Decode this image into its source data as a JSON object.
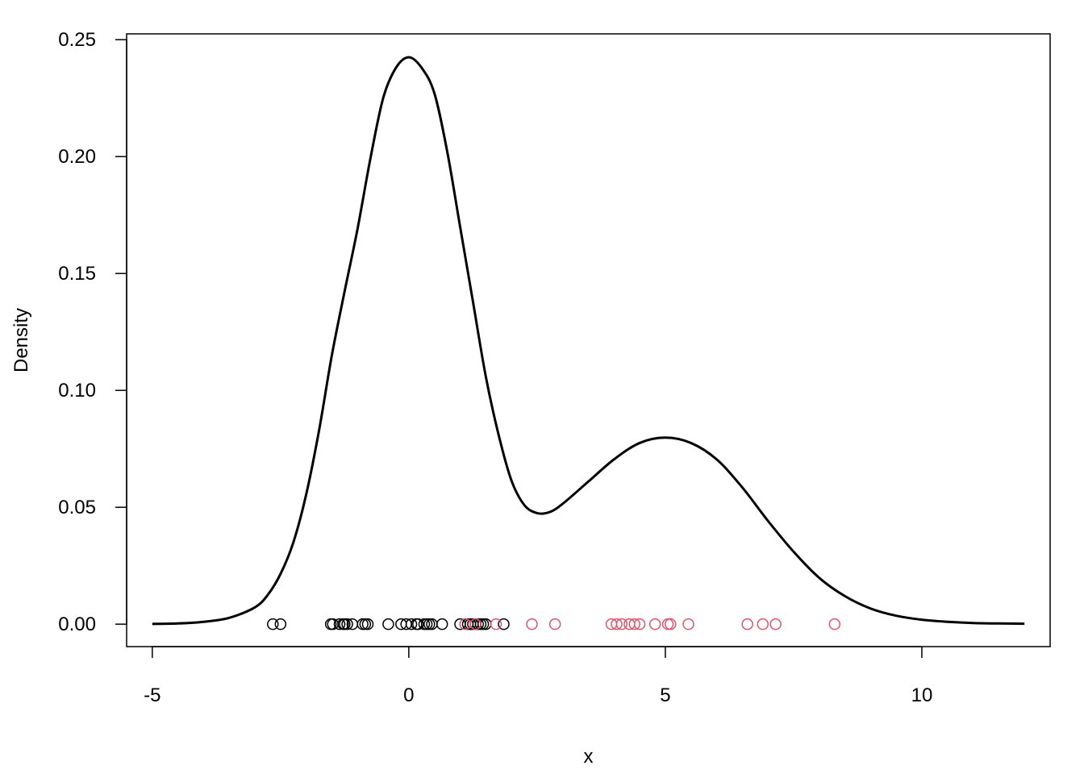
{
  "chart_data": {
    "type": "line",
    "title": "",
    "xlabel": "x",
    "ylabel": "Density",
    "xlim": [
      -5.5,
      12.5
    ],
    "ylim": [
      -0.0096,
      0.2525
    ],
    "grid": false,
    "legend": "none",
    "x_ticks": [
      -5,
      0,
      5,
      10
    ],
    "x_tick_labels": [
      "-5",
      "0",
      "5",
      "10"
    ],
    "y_ticks": [
      0,
      0.05,
      0.1,
      0.15,
      0.2,
      0.25
    ],
    "y_tick_labels": [
      "0.00",
      "0.05",
      "0.10",
      "0.15",
      "0.20",
      "0.25"
    ],
    "colors": {
      "curve": "#000000",
      "group1": "#000000",
      "group2": "#DF536B"
    },
    "density_curve": {
      "x": [
        -5,
        -4.5,
        -4,
        -3.5,
        -3,
        -2.75,
        -2.5,
        -2.25,
        -2,
        -1.75,
        -1.5,
        -1.25,
        -1,
        -0.75,
        -0.5,
        -0.25,
        0,
        0.25,
        0.5,
        0.75,
        1,
        1.25,
        1.5,
        1.75,
        2,
        2.25,
        2.5,
        2.75,
        3,
        3.5,
        4,
        4.5,
        5,
        5.5,
        6,
        6.5,
        7,
        7.5,
        8,
        8.5,
        9,
        9.5,
        10,
        10.5,
        11,
        11.5,
        12
      ],
      "y": [
        0.0001,
        0.0003,
        0.001,
        0.0027,
        0.0072,
        0.0125,
        0.0215,
        0.035,
        0.0555,
        0.0828,
        0.115,
        0.1425,
        0.169,
        0.199,
        0.225,
        0.238,
        0.2425,
        0.238,
        0.227,
        0.202,
        0.17,
        0.138,
        0.106,
        0.081,
        0.0615,
        0.051,
        0.0475,
        0.048,
        0.0515,
        0.061,
        0.0705,
        0.0775,
        0.0798,
        0.0775,
        0.0705,
        0.0585,
        0.0442,
        0.031,
        0.0198,
        0.012,
        0.0067,
        0.0036,
        0.0019,
        0.001,
        0.0005,
        0.0003,
        0.0002
      ]
    },
    "series": [
      {
        "type": "scatter",
        "color": "#000000",
        "x": [
          -2.65,
          -2.5,
          -1.52,
          -1.48,
          -1.35,
          -1.28,
          -1.25,
          -1.2,
          -1.1,
          -0.9,
          -0.85,
          -0.8,
          -0.4,
          -0.15,
          -0.05,
          0.05,
          0.15,
          0.18,
          0.3,
          0.35,
          0.4,
          0.45,
          0.65,
          1.0,
          1.15,
          1.2,
          1.25,
          1.3,
          1.35,
          1.4,
          1.45,
          1.5,
          1.85
        ],
        "y": [
          0,
          0,
          0,
          0,
          0,
          0,
          0,
          0,
          0,
          0,
          0,
          0,
          0,
          0,
          0,
          0,
          0,
          0,
          0,
          0,
          0,
          0,
          0,
          0,
          0,
          0,
          0,
          0,
          0,
          0,
          0,
          0,
          0
        ]
      },
      {
        "type": "scatter",
        "color": "#DF536B",
        "x": [
          1.1,
          1.3,
          1.7,
          2.4,
          2.85,
          3.95,
          4.05,
          4.15,
          4.3,
          4.4,
          4.5,
          4.8,
          5.05,
          5.1,
          5.45,
          6.6,
          6.9,
          7.15,
          8.3
        ],
        "y": [
          0,
          0,
          0,
          0,
          0,
          0,
          0,
          0,
          0,
          0,
          0,
          0,
          0,
          0,
          0,
          0,
          0,
          0,
          0
        ]
      }
    ]
  }
}
